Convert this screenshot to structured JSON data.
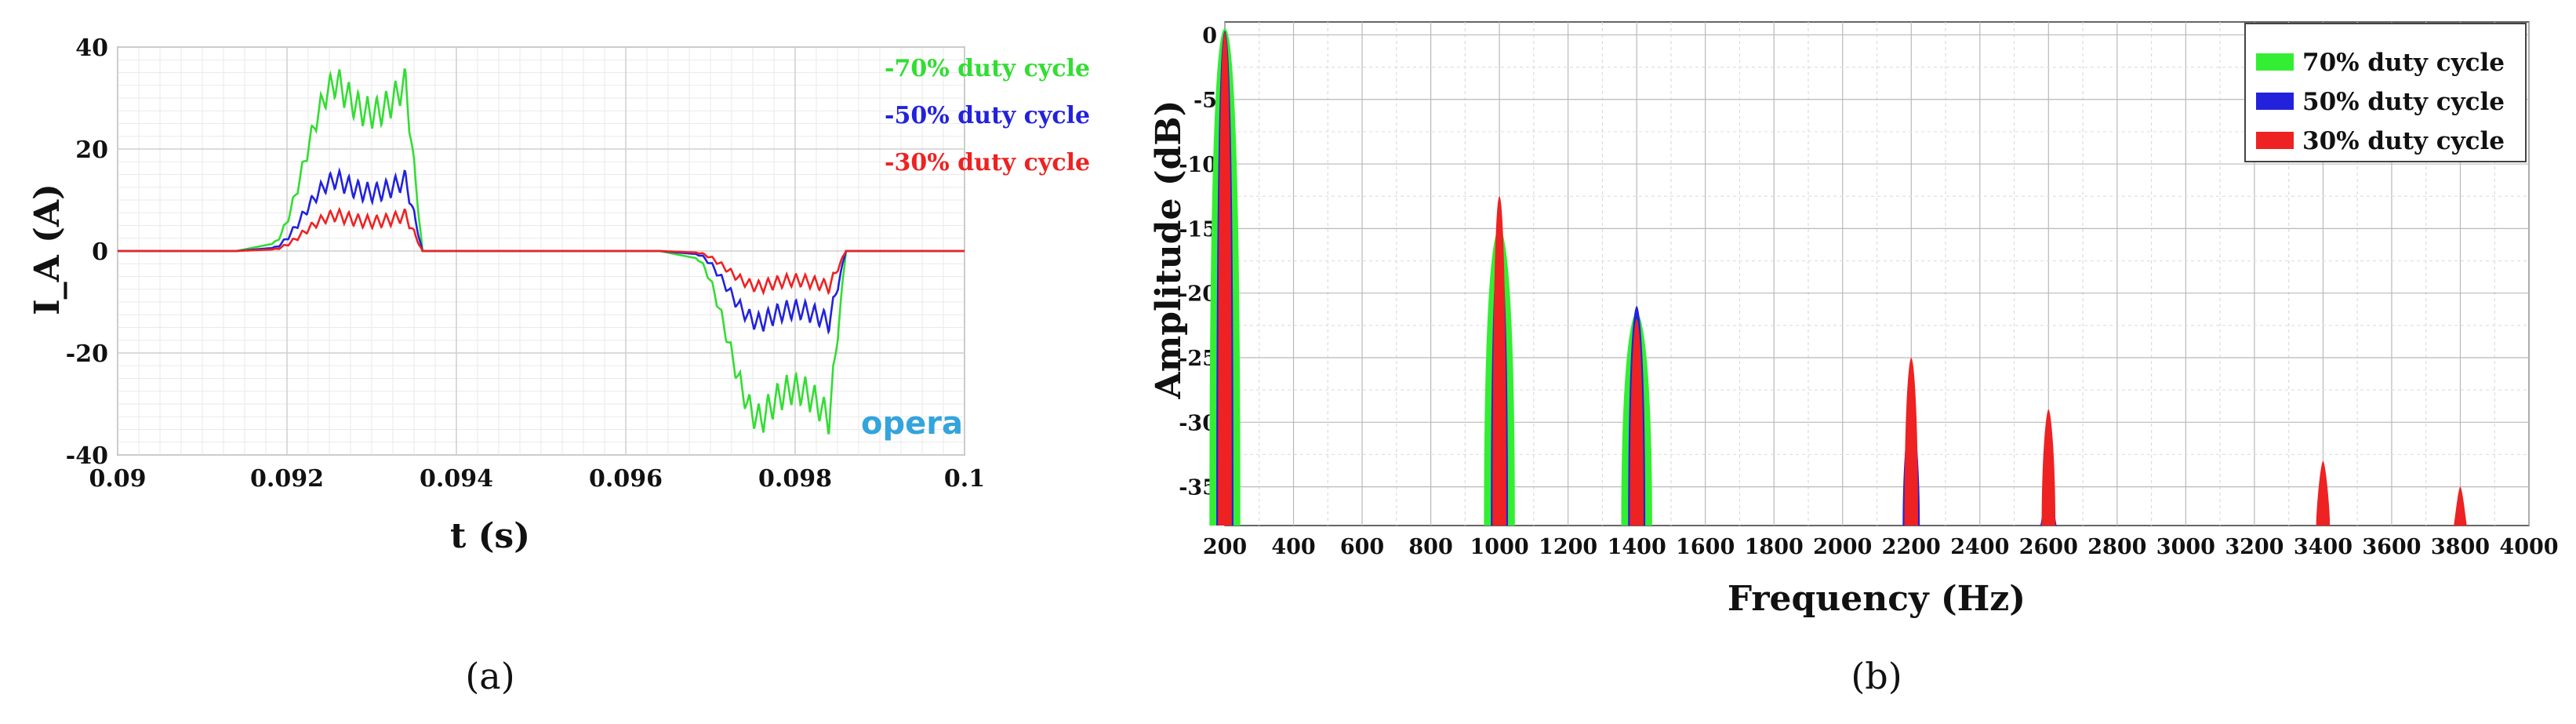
{
  "chart_data": [
    {
      "id": "a",
      "type": "line",
      "panel_label": "(a)",
      "title": "",
      "xlabel": "t (s)",
      "ylabel": "I_A (A)",
      "xlim": [
        0.09,
        0.1
      ],
      "ylim": [
        -40,
        40
      ],
      "xticks": [
        "0.09",
        "0.092",
        "0.094",
        "0.096",
        "0.098",
        "0.1"
      ],
      "yticks": [
        "40",
        "20",
        "0",
        "-20",
        "-40"
      ],
      "grid": true,
      "legend_position": "top-right",
      "watermark": "opera",
      "series": [
        {
          "name": "70% duty cycle",
          "legend_label": "-70% duty cycle",
          "color": "#33dd33",
          "peak": 33,
          "ripple": 3.2
        },
        {
          "name": "50% duty cycle",
          "legend_label": "-50% duty cycle",
          "color": "#2222dd",
          "peak": 14,
          "ripple": 2.0
        },
        {
          "name": "30% duty cycle",
          "legend_label": "-30% duty cycle",
          "color": "#ee2222",
          "peak": 7,
          "ripple": 1.3
        }
      ],
      "waveform": {
        "period_s": 0.005,
        "start_phase_s": 0.0914,
        "rise_s": [
          0.0004,
          0.0012
        ],
        "flat_top_s": [
          0.0012,
          0.002
        ],
        "fall_s": [
          0.002,
          0.0022
        ],
        "zero_shoulder_s": [
          0.0022,
          0.0025
        ],
        "ripple_period_s": 0.00011
      }
    },
    {
      "id": "b",
      "type": "bar",
      "panel_label": "(b)",
      "title": "",
      "xlabel": "Frequency (Hz)",
      "ylabel": "Amplitude (dB)",
      "xlim": [
        200,
        4000
      ],
      "ylim": [
        -38,
        1
      ],
      "xticks": [
        "200",
        "400",
        "600",
        "800",
        "1000",
        "1200",
        "1400",
        "1600",
        "1800",
        "2000",
        "2200",
        "2400",
        "2600",
        "2800",
        "3000",
        "3200",
        "3400",
        "3600",
        "3800",
        "4000"
      ],
      "yticks": [
        "0",
        "-5",
        "-10",
        "-15",
        "-20",
        "-25",
        "-30",
        "-35"
      ],
      "grid": true,
      "legend_position": "top-right",
      "series": [
        {
          "name": "70% duty cycle",
          "color": "#33ee33",
          "half_width_hz": 45,
          "points": [
            {
              "f": 200,
              "db": 0.5
            },
            {
              "f": 1000,
              "db": -15
            },
            {
              "f": 1400,
              "db": -21.5
            }
          ]
        },
        {
          "name": "50% duty cycle",
          "color": "#2222dd",
          "half_width_hz": 25,
          "points": [
            {
              "f": 200,
              "db": 0.3
            },
            {
              "f": 1000,
              "db": -16
            },
            {
              "f": 1400,
              "db": -21
            },
            {
              "f": 2200,
              "db": -29
            },
            {
              "f": 2600,
              "db": -35
            }
          ]
        },
        {
          "name": "30% duty cycle",
          "color": "#ee2222",
          "half_width_hz": 20,
          "points": [
            {
              "f": 200,
              "db": 0.2
            },
            {
              "f": 1000,
              "db": -12.5
            },
            {
              "f": 1400,
              "db": -22
            },
            {
              "f": 2200,
              "db": -25
            },
            {
              "f": 2600,
              "db": -29
            },
            {
              "f": 3400,
              "db": -33
            },
            {
              "f": 3800,
              "db": -35
            }
          ]
        }
      ]
    }
  ]
}
